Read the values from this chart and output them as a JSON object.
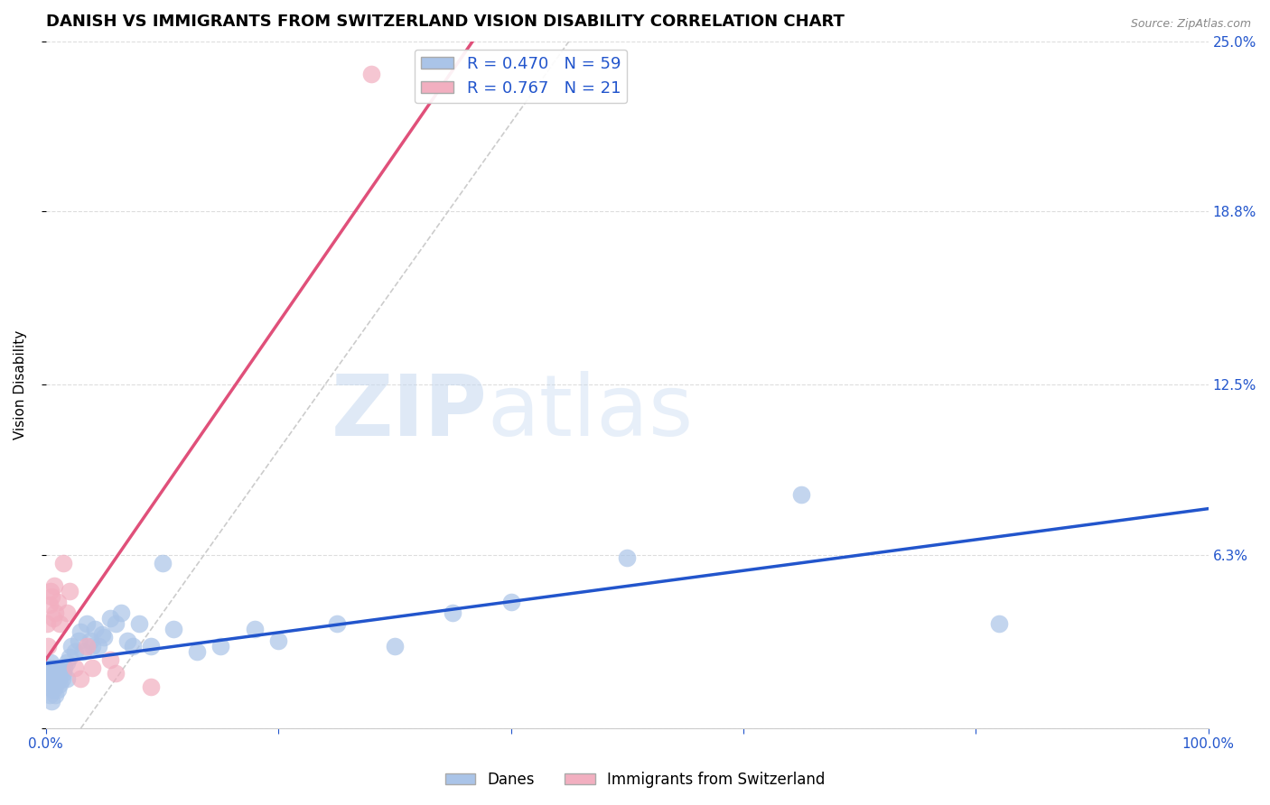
{
  "title": "DANISH VS IMMIGRANTS FROM SWITZERLAND VISION DISABILITY CORRELATION CHART",
  "source": "Source: ZipAtlas.com",
  "ylabel": "Vision Disability",
  "xlim": [
    0,
    1.0
  ],
  "ylim": [
    0,
    0.25
  ],
  "ytick_positions": [
    0.0,
    0.063,
    0.125,
    0.188,
    0.25
  ],
  "ytick_labels": [
    "",
    "6.3%",
    "12.5%",
    "18.8%",
    "25.0%"
  ],
  "danes_color": "#aac4e8",
  "swiss_color": "#f2afc0",
  "danes_line_color": "#2255cc",
  "swiss_line_color": "#e0507a",
  "danes_R": 0.47,
  "danes_N": 59,
  "swiss_R": 0.767,
  "swiss_N": 21,
  "legend_label_danes": "Danes",
  "legend_label_swiss": "Immigrants from Switzerland",
  "background_color": "#ffffff",
  "grid_color": "#dddddd",
  "title_fontsize": 13,
  "axis_label_fontsize": 11,
  "tick_fontsize": 11,
  "tick_color_x": "#2255cc",
  "tick_color_y": "#2255cc",
  "danes_x": [
    0.001,
    0.002,
    0.002,
    0.003,
    0.003,
    0.004,
    0.004,
    0.005,
    0.005,
    0.006,
    0.006,
    0.007,
    0.007,
    0.008,
    0.008,
    0.009,
    0.01,
    0.01,
    0.011,
    0.012,
    0.013,
    0.014,
    0.015,
    0.016,
    0.018,
    0.018,
    0.02,
    0.022,
    0.025,
    0.028,
    0.03,
    0.032,
    0.035,
    0.038,
    0.04,
    0.042,
    0.045,
    0.048,
    0.05,
    0.055,
    0.06,
    0.065,
    0.07,
    0.075,
    0.08,
    0.09,
    0.1,
    0.11,
    0.13,
    0.15,
    0.18,
    0.2,
    0.25,
    0.3,
    0.35,
    0.4,
    0.5,
    0.65,
    0.82
  ],
  "danes_y": [
    0.018,
    0.015,
    0.022,
    0.012,
    0.02,
    0.016,
    0.024,
    0.01,
    0.018,
    0.014,
    0.02,
    0.016,
    0.022,
    0.012,
    0.018,
    0.016,
    0.014,
    0.02,
    0.018,
    0.016,
    0.022,
    0.018,
    0.02,
    0.022,
    0.018,
    0.024,
    0.026,
    0.03,
    0.028,
    0.032,
    0.035,
    0.028,
    0.038,
    0.032,
    0.03,
    0.036,
    0.03,
    0.034,
    0.033,
    0.04,
    0.038,
    0.042,
    0.032,
    0.03,
    0.038,
    0.03,
    0.06,
    0.036,
    0.028,
    0.03,
    0.036,
    0.032,
    0.038,
    0.03,
    0.042,
    0.046,
    0.062,
    0.085,
    0.038
  ],
  "swiss_x": [
    0.001,
    0.002,
    0.003,
    0.004,
    0.005,
    0.006,
    0.007,
    0.008,
    0.01,
    0.012,
    0.015,
    0.018,
    0.02,
    0.025,
    0.03,
    0.035,
    0.04,
    0.055,
    0.06,
    0.09,
    0.28
  ],
  "swiss_y": [
    0.038,
    0.03,
    0.045,
    0.05,
    0.048,
    0.04,
    0.052,
    0.042,
    0.046,
    0.038,
    0.06,
    0.042,
    0.05,
    0.022,
    0.018,
    0.03,
    0.022,
    0.025,
    0.02,
    0.015,
    0.238
  ]
}
